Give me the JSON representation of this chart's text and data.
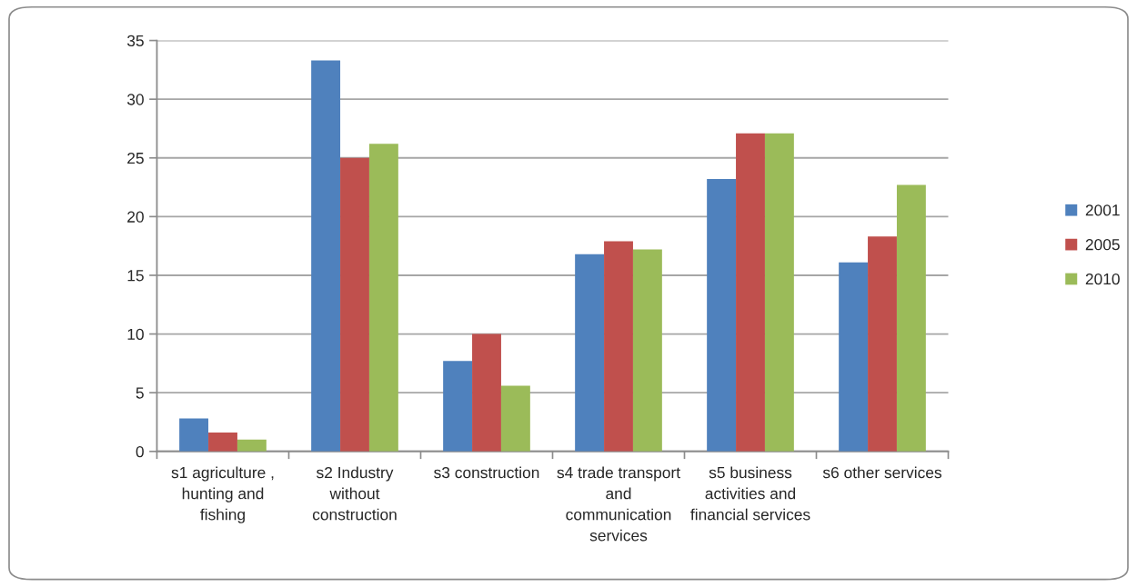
{
  "chart_data": {
    "type": "bar",
    "categories": [
      "s1 agriculture , hunting and fishing",
      "s2 Industry without construction",
      "s3 construction",
      "s4 trade transport and communication services",
      "s5 business activities and financial services",
      "s6 other services"
    ],
    "series": [
      {
        "name": "2001",
        "color": "#4f81bd",
        "values": [
          2.8,
          33.3,
          7.7,
          16.8,
          23.2,
          16.1
        ]
      },
      {
        "name": "2005",
        "color": "#c0504d",
        "values": [
          1.6,
          25.0,
          10.0,
          17.9,
          27.1,
          18.3
        ]
      },
      {
        "name": "2010",
        "color": "#9bbb59",
        "values": [
          1.0,
          26.2,
          5.6,
          17.2,
          27.1,
          22.7
        ]
      }
    ],
    "ylim": [
      0,
      35
    ],
    "yticks": [
      0,
      5,
      10,
      15,
      20,
      25,
      30,
      35
    ],
    "grid": "y",
    "legend": "right"
  }
}
